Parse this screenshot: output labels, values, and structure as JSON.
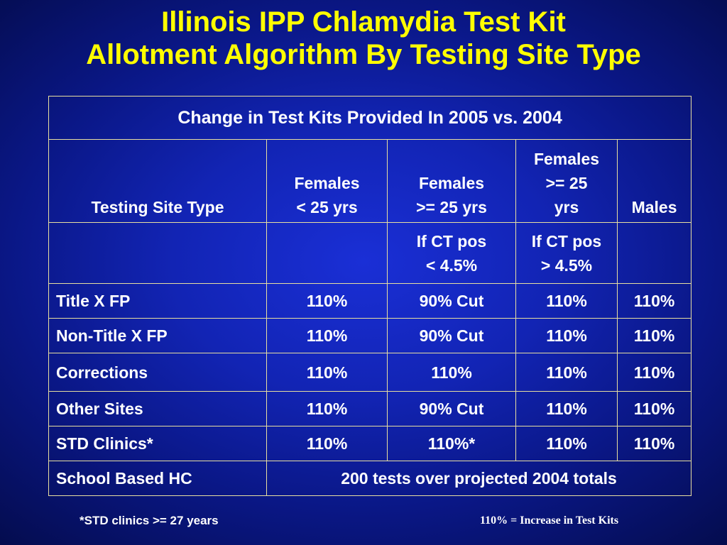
{
  "title": {
    "line1": "Illinois IPP Chlamydia Test Kit",
    "line2": "Allotment Algorithm By Testing Site Type"
  },
  "table": {
    "caption": "Change in Test Kits Provided In 2005 vs. 2004",
    "headers": {
      "site_type": "Testing Site Type",
      "col1": [
        "Females",
        "< 25 yrs"
      ],
      "col2": [
        "Females",
        ">= 25 yrs"
      ],
      "col3": [
        "Females",
        ">= 25",
        "yrs"
      ],
      "col4": "Males"
    },
    "sub_headers": {
      "col2": [
        "If CT pos",
        "< 4.5%"
      ],
      "col3": [
        "If CT pos",
        "> 4.5%"
      ]
    },
    "rows": [
      {
        "site": "Title X FP",
        "c1": "110%",
        "c2": "90% Cut",
        "c3": "110%",
        "c4": "110%"
      },
      {
        "site": "Non-Title X FP",
        "c1": "110%",
        "c2": "90% Cut",
        "c3": "110%",
        "c4": "110%"
      },
      {
        "site": "Corrections",
        "c1": "110%",
        "c2": "110%",
        "c3": "110%",
        "c4": "110%"
      },
      {
        "site": "Other Sites",
        "c1": "110%",
        "c2": "90% Cut",
        "c3": "110%",
        "c4": "110%"
      },
      {
        "site": "STD Clinics*",
        "c1": "110%",
        "c2": "110%*",
        "c3": "110%",
        "c4": "110%"
      }
    ],
    "last_row": {
      "site": "School Based HC",
      "merged": "200 tests over projected 2004 totals"
    }
  },
  "footnotes": {
    "left": "*STD clinics >= 27 years",
    "right": "110% = Increase in Test Kits"
  },
  "colors": {
    "title": "#ffff00",
    "text": "#ffffff",
    "border": "#e8dfa0",
    "background": "#1224b4"
  }
}
